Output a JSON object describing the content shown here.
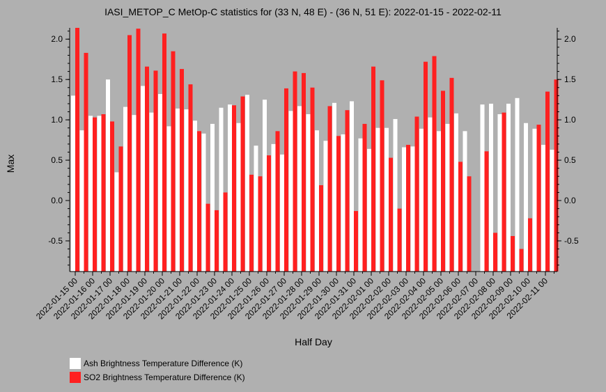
{
  "chart_data": {
    "type": "bar",
    "title": "IASI_METOP_C MetOp-C statistics for (33 N, 48 E) - (36 N, 51 E): 2022-01-15 - 2022-02-11",
    "xlabel": "Half Day",
    "ylabel": "Max",
    "ylim": [
      -0.88,
      2.14
    ],
    "yticks": [
      2.0,
      1.5,
      1.0,
      0.5,
      0.0,
      -0.5
    ],
    "ytick_labels": [
      "2.0",
      "1.5",
      "1.0",
      "0.5",
      "0.0",
      "-0.5"
    ],
    "x_tick_labels": [
      "2022-01-15 00",
      "2022-01-16 00",
      "2022-01-17 00",
      "2022-01-18 00",
      "2022-01-19 00",
      "2022-01-20 00",
      "2022-01-21 00",
      "2022-01-22 00",
      "2022-01-23 00",
      "2022-01-24 00",
      "2022-01-25 00",
      "2022-01-26 00",
      "2022-01-27 00",
      "2022-01-28 00",
      "2022-01-29 00",
      "2022-01-30 00",
      "2022-01-31 00",
      "2022-02-01 00",
      "2022-02-02 00",
      "2022-02-03 00",
      "2022-02-04 00",
      "2022-02-05 00",
      "2022-02-06 00",
      "2022-02-07 00",
      "2022-02-08 00",
      "2022-02-09 00",
      "2022-02-10 00",
      "2022-02-11 00"
    ],
    "legend_position": "bottom-left",
    "series": [
      {
        "name": "Ash Brightness Temperature Difference (K)",
        "color": "#ffffff",
        "values": [
          1.3,
          0.87,
          1.05,
          1.05,
          1.5,
          0.35,
          1.16,
          1.06,
          1.42,
          1.09,
          1.32,
          0.92,
          1.14,
          1.13,
          0.99,
          0.83,
          0.95,
          1.15,
          1.19,
          0.96,
          1.31,
          0.68,
          1.25,
          0.7,
          0.57,
          1.11,
          1.17,
          1.07,
          0.87,
          0.74,
          1.21,
          0.82,
          1.23,
          0.77,
          0.64,
          0.9,
          0.9,
          1.01,
          0.66,
          0.67,
          0.89,
          1.03,
          0.86,
          0.95,
          1.08,
          0.86,
          null,
          1.19,
          1.2,
          1.07,
          1.2,
          1.27,
          0.96,
          0.89,
          0.69,
          0.63
        ]
      },
      {
        "name": "SO2 Brightness Temperature Difference (K)",
        "color": "#ff2020",
        "values": [
          2.14,
          1.83,
          1.03,
          1.07,
          0.98,
          0.67,
          2.05,
          2.13,
          1.66,
          1.61,
          2.07,
          1.85,
          1.63,
          1.44,
          0.86,
          -0.04,
          -0.12,
          0.1,
          1.18,
          1.29,
          0.32,
          0.3,
          0.56,
          0.86,
          1.39,
          1.6,
          1.58,
          1.4,
          0.19,
          1.17,
          0.8,
          1.12,
          -0.13,
          0.95,
          1.66,
          1.49,
          0.53,
          -0.1,
          0.69,
          1.04,
          1.72,
          1.79,
          1.36,
          1.52,
          0.48,
          0.3,
          null,
          0.61,
          -0.4,
          1.09,
          -0.44,
          -0.6,
          -0.22,
          0.94,
          1.35,
          1.5
        ]
      }
    ]
  }
}
